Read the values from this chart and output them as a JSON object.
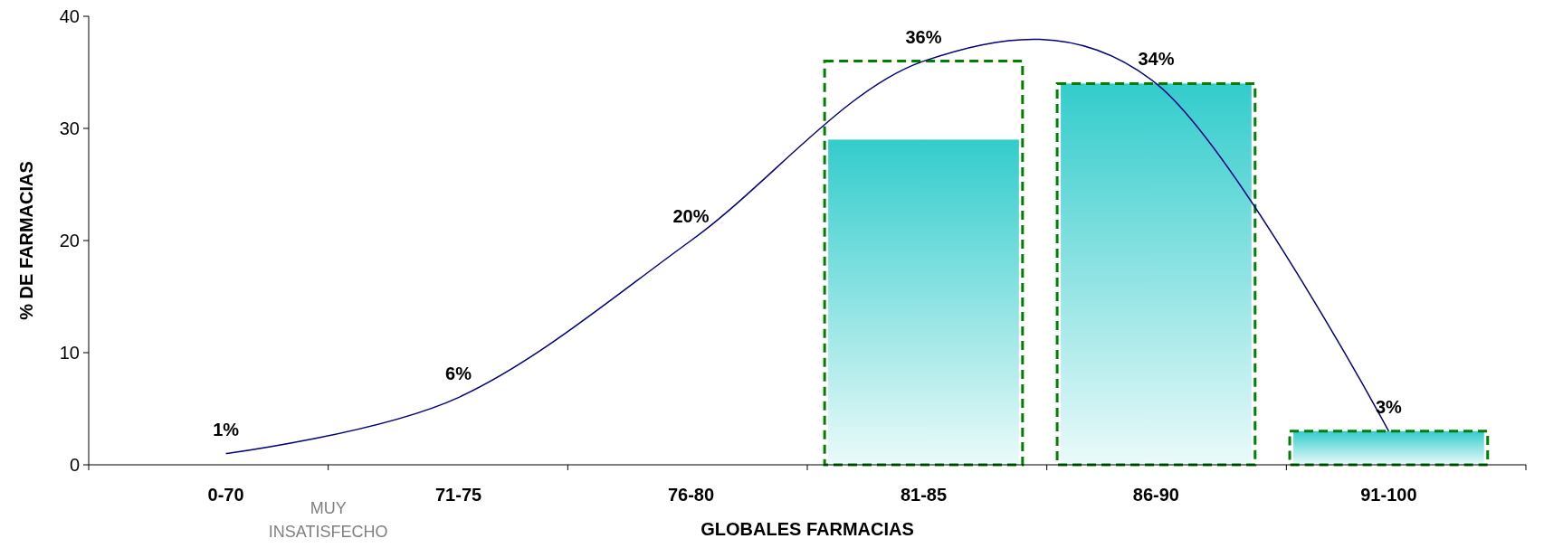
{
  "chart_data": {
    "type": "bar",
    "xlabel": "GLOBALES FARMACIAS",
    "ylabel": "% DE FARMACIAS",
    "categories": [
      "0-70",
      "71-75",
      "76-80",
      "81-85",
      "86-90",
      "91-100"
    ],
    "series": [
      {
        "color": "#33cccc",
        "values": [
          null,
          null,
          null,
          29,
          34,
          3
        ]
      },
      {
        "color": "#008000",
        "line_style": "dashed",
        "values": [
          null,
          null,
          null,
          36,
          34,
          3
        ]
      },
      {
        "type": "line",
        "color": "#000080",
        "values": [
          1,
          6,
          20,
          36,
          34,
          3
        ],
        "value_labels": [
          "1%",
          "6%",
          "20%",
          "36%",
          "34%",
          "3%"
        ]
      }
    ],
    "annotations": [
      {
        "text": "MUY INSATISFECHO"
      }
    ],
    "ylim": [
      0,
      40
    ],
    "yticks": [
      0,
      10,
      20,
      30,
      40
    ],
    "grid": false,
    "marker": "none"
  }
}
